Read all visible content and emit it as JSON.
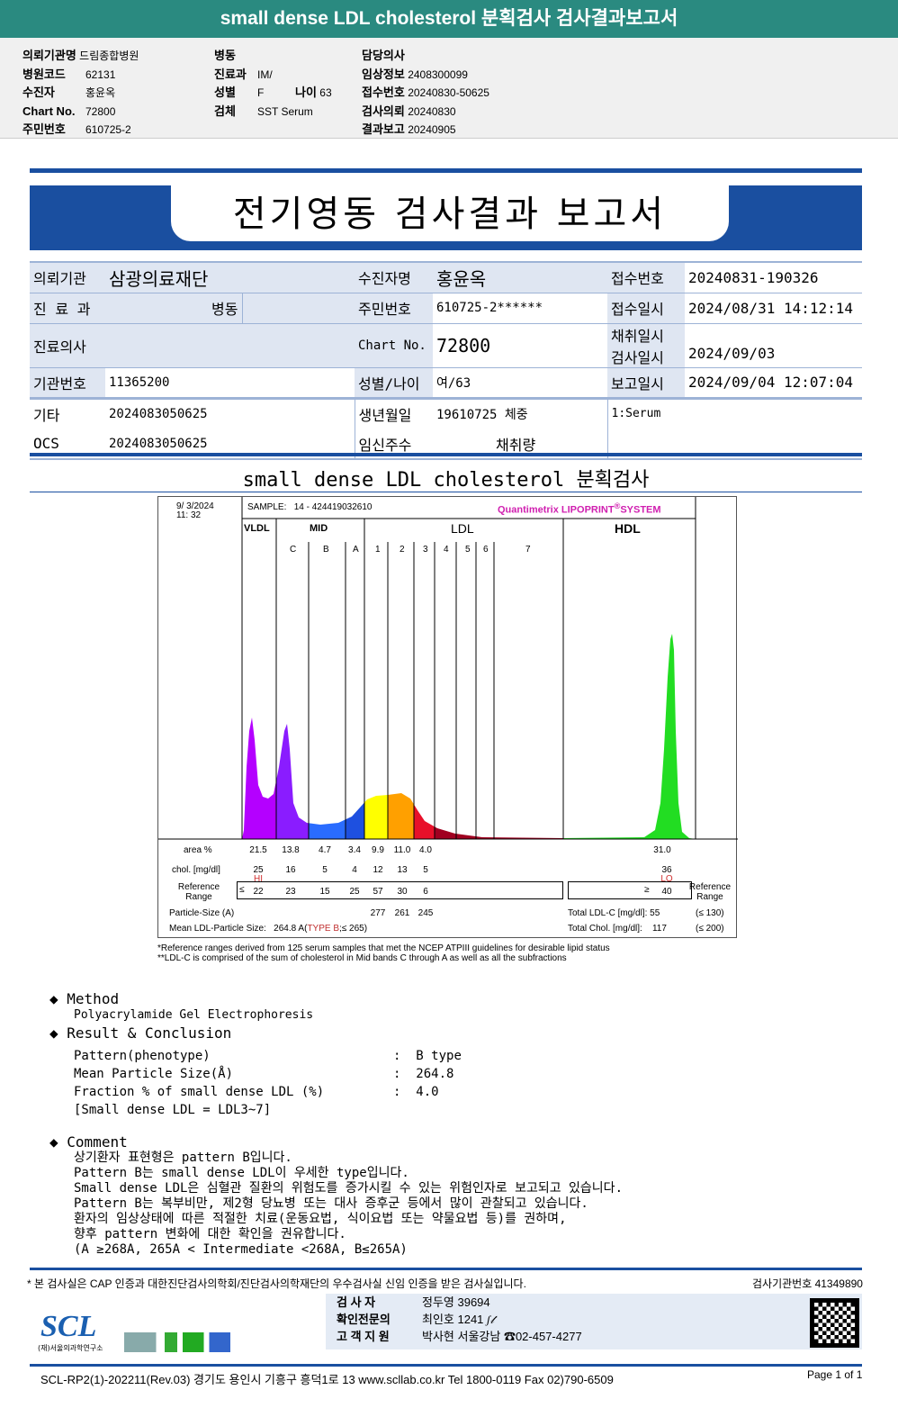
{
  "header": {
    "title": "small dense LDL cholesterol 분획검사 검사결과보고서"
  },
  "info": {
    "col1": [
      {
        "k": "의뢰기관명",
        "v": "드림종합병원"
      },
      {
        "k": "병원코드",
        "v": "62131"
      },
      {
        "k": "수진자",
        "v": "홍윤옥"
      },
      {
        "k": "Chart No.",
        "v": "72800"
      },
      {
        "k": "주민번호",
        "v": "610725-2"
      }
    ],
    "col2": [
      {
        "k": "병동",
        "v": ""
      },
      {
        "k": "진료과",
        "v": "IM/"
      },
      {
        "k": "성별",
        "v": "F"
      },
      {
        "k": "검체",
        "v": "SST Serum"
      }
    ],
    "age": {
      "k": "나이",
      "v": "63"
    },
    "col3": [
      {
        "k": "담당의사",
        "v": ""
      },
      {
        "k": "임상정보",
        "v": "2408300099"
      },
      {
        "k": "접수번호",
        "v": "20240830-50625"
      },
      {
        "k": "검사의뢰",
        "v": "20240830"
      },
      {
        "k": "결과보고",
        "v": "20240905"
      }
    ]
  },
  "report_title": "전기영동 검사결과 보고서",
  "patient": {
    "r1": [
      "의뢰기관",
      "삼광의료재단",
      "수진자명",
      "홍윤옥",
      "접수번호",
      "20240831-190326"
    ],
    "r2": [
      "진 료 과",
      "병동",
      "주민번호",
      "610725-2******",
      "접수일시",
      "2024/08/31 14:12:14"
    ],
    "r2b": [
      "채취일시",
      ""
    ],
    "r3": [
      "진료의사",
      "",
      "Chart No.",
      "72800",
      "검사일시",
      "2024/09/03"
    ],
    "r4": [
      "기관번호",
      "11365200",
      "성별/나이",
      "여/63",
      "보고일시",
      "2024/09/04 12:07:04"
    ],
    "r5": [
      "기타",
      "2024083050625",
      "생년월일",
      "19610725 체중",
      "1:Serum"
    ],
    "r6": [
      "OCS",
      "2024083050625",
      "임신주수",
      "채취량"
    ]
  },
  "section_title": "small dense LDL cholesterol 분획검사",
  "chart": {
    "date": "9/  3/2024",
    "time": "11: 32",
    "sample_label": "SAMPLE:",
    "sample": "14 - 424419032610",
    "brand": "Quantimetrix LIPOPRINT",
    "brand2": "SYSTEM",
    "groups": [
      "VLDL",
      "MID",
      "LDL",
      "HDL"
    ],
    "bands": [
      "C",
      "B",
      "A",
      "1",
      "2",
      "3",
      "4",
      "5",
      "6",
      "7"
    ],
    "area_label": "area %",
    "area": [
      "21.5",
      "13.8",
      "4.7",
      "3.4",
      "9.9",
      "11.0",
      "4.0"
    ],
    "hdl_area": "31.0",
    "chol_label": "chol. [mg/dl]",
    "chol": [
      "25",
      "16",
      "5",
      "4",
      "12",
      "13",
      "5"
    ],
    "hdl_chol": "36",
    "hi": "HI",
    "lo": "LO",
    "ref_label": "Reference Range",
    "ref_le": "≤",
    "ref": [
      "22",
      "23",
      "15",
      "25",
      "57",
      "30",
      "6"
    ],
    "ref_ge": "≥",
    "hdl_ref": "40",
    "psize_label": "Particle-Size (A)",
    "psize": [
      "277",
      "261",
      "245"
    ],
    "mean_label": "Mean LDL-Particle Size:",
    "mean": "264.8 A",
    "mean_type": "TYPE B",
    "mean_ref": ";≤ 265)",
    "tldl_label": "Total LDL-C [mg/dl]:",
    "tldl": "55",
    "tldl_ref": "(≤ 130)",
    "tchol_label": "Total Chol. [mg/dl]:",
    "tchol": "117",
    "tchol_ref": "(≤ 200)",
    "note1": "*Reference ranges derived from 125 serum samples that met the NCEP ATPIII guidelines for desirable lipid status",
    "note2": "**LDL-C is comprised of the sum of cholesterol in Mid bands C through A as well as all the subfractions",
    "colors": {
      "vldl": "#b400ff",
      "c": "#8a1cff",
      "b": "#2a6cff",
      "a": "#1e50e0",
      "l1": "#ffff00",
      "l2": "#ffa000",
      "l3": "#e8102a",
      "l4": "#a00020",
      "hdl": "#22dd22"
    }
  },
  "method": {
    "title": "Method",
    "text": "Polyacrylamide Gel Electrophoresis"
  },
  "result": {
    "title": "Result & Conclusion",
    "rows": [
      {
        "k": "Pattern(phenotype)",
        "v": "B type"
      },
      {
        "k": "Mean Particle Size(Å)",
        "v": "264.8"
      },
      {
        "k": "Fraction % of small dense LDL (%)",
        "v": "4.0"
      }
    ],
    "note": "[Small dense LDL = LDL3~7]"
  },
  "comment": {
    "title": "Comment",
    "lines": [
      "상기환자 표현형은 pattern B입니다.",
      "Pattern B는 small dense LDL이 우세한 type입니다.",
      "Small dense LDL은 심혈관 질환의 위험도를 증가시킬 수 있는 위험인자로 보고되고 있습니다.",
      "Pattern B는 복부비만, 제2형 당뇨병 또는 대사 증후군 등에서 많이 관찰되고 있습니다.",
      "환자의 임상상태에 따른 적절한 치료(운동요법, 식이요법 또는 약물요법 등)를 권하며,",
      "향후 pattern 변화에 대한 확인을 권유합니다.",
      "(A ≥268A, 265A < Intermediate <268A, B≤265A)"
    ]
  },
  "footer": {
    "cert": "* 본 검사실은 CAP 인증과 대한진단검사의학회/진단검사의학재단의 우수검사실 신임 인증을 받은 검사실입니다.",
    "lab_no": "검사기관번호 41349890",
    "staff": [
      {
        "k": "검 사 자",
        "v": "정두영 39694"
      },
      {
        "k": "확인전문의",
        "v": "최인호 1241"
      },
      {
        "k": "고 객 지 원",
        "v": "박사현 서울강남 ☎02-457-4277"
      }
    ],
    "logo": "SCL",
    "logo_sub": "(재)서울의과학연구소",
    "address": "SCL-RP2(1)-202211(Rev.03)  경기도 용인시 기흥구 흥덕1로 13  www.scllab.co.kr  Tel 1800-0119  Fax 02)790-6509",
    "page": "Page 1 of 1"
  }
}
